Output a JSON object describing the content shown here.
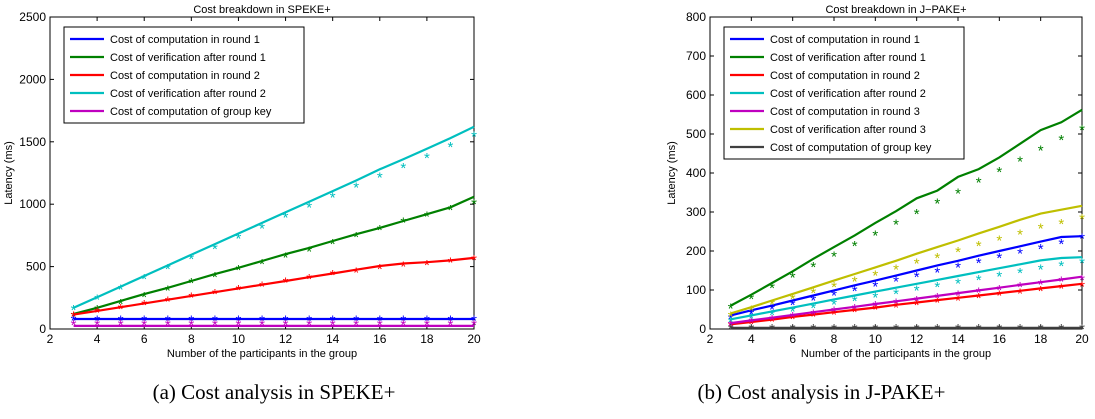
{
  "chart_data": [
    {
      "type": "line",
      "title": "Cost breakdown in SPEKE+",
      "caption": "(a) Cost analysis in SPEKE+",
      "xlabel": "Number of the participants in the group",
      "ylabel": "Latency (ms)",
      "xlim": [
        2,
        20
      ],
      "ylim": [
        0,
        2500
      ],
      "xticks": [
        2,
        4,
        6,
        8,
        10,
        12,
        14,
        16,
        18,
        20
      ],
      "yticks": [
        0,
        500,
        1000,
        1500,
        2000,
        2500
      ],
      "legend_position": "top-left",
      "x": [
        3,
        4,
        5,
        6,
        7,
        8,
        9,
        10,
        11,
        12,
        13,
        14,
        15,
        16,
        17,
        18,
        19,
        20
      ],
      "series": [
        {
          "name": "Cost of computation in round 1",
          "color": "#0000ff",
          "values": [
            80,
            80,
            80,
            80,
            80,
            80,
            80,
            80,
            80,
            80,
            80,
            80,
            80,
            80,
            80,
            80,
            80,
            80
          ],
          "measured": [
            75,
            75,
            75,
            75,
            75,
            75,
            75,
            75,
            75,
            75,
            75,
            75,
            75,
            75,
            75,
            75,
            75,
            75
          ]
        },
        {
          "name": "Cost of verification after round 1",
          "color": "#008000",
          "values": [
            120,
            170,
            225,
            280,
            330,
            385,
            440,
            490,
            545,
            600,
            650,
            705,
            760,
            810,
            865,
            920,
            975,
            1060
          ],
          "measured": [
            110,
            160,
            210,
            265,
            315,
            375,
            425,
            480,
            530,
            580,
            630,
            690,
            745,
            800,
            860,
            910,
            960,
            1010
          ]
        },
        {
          "name": "Cost of computation in round 2",
          "color": "#ff0000",
          "values": [
            115,
            145,
            175,
            205,
            235,
            265,
            295,
            325,
            355,
            385,
            415,
            445,
            475,
            505,
            525,
            535,
            550,
            570
          ],
          "measured": [
            110,
            140,
            170,
            200,
            230,
            260,
            290,
            320,
            350,
            380,
            410,
            440,
            460,
            490,
            510,
            520,
            540,
            560
          ]
        },
        {
          "name": "Cost of verification after round 2",
          "color": "#00bfbf",
          "values": [
            170,
            255,
            340,
            425,
            510,
            595,
            680,
            765,
            850,
            935,
            1020,
            1105,
            1190,
            1280,
            1360,
            1445,
            1530,
            1620
          ],
          "measured": [
            160,
            245,
            325,
            410,
            490,
            570,
            650,
            735,
            815,
            900,
            980,
            1060,
            1140,
            1220,
            1300,
            1380,
            1465,
            1550
          ]
        },
        {
          "name": "Cost of computation of group key",
          "color": "#bf00bf",
          "values": [
            25,
            25,
            25,
            25,
            25,
            25,
            25,
            25,
            25,
            25,
            25,
            25,
            25,
            25,
            25,
            25,
            25,
            25
          ],
          "measured": [
            40,
            40,
            40,
            40,
            40,
            40,
            40,
            40,
            40,
            40,
            40,
            40,
            40,
            40,
            40,
            40,
            40,
            40
          ]
        }
      ]
    },
    {
      "type": "line",
      "title": "Cost breakdown in J−PAKE+",
      "caption": "(b) Cost analysis in J-PAKE+",
      "xlabel": "Number of the participants in the group",
      "ylabel": "Latency (ms)",
      "xlim": [
        2,
        20
      ],
      "ylim": [
        0,
        800
      ],
      "xticks": [
        2,
        4,
        6,
        8,
        10,
        12,
        14,
        16,
        18,
        20
      ],
      "yticks": [
        0,
        100,
        200,
        300,
        400,
        500,
        600,
        700,
        800
      ],
      "legend_position": "top-left",
      "x": [
        3,
        4,
        5,
        6,
        7,
        8,
        9,
        10,
        11,
        12,
        13,
        14,
        15,
        16,
        17,
        18,
        19,
        20
      ],
      "series": [
        {
          "name": "Cost of computation in round 1",
          "color": "#0000ff",
          "values": [
            35,
            48,
            60,
            73,
            86,
            99,
            112,
            124,
            137,
            150,
            163,
            175,
            188,
            200,
            212,
            224,
            236,
            238
          ],
          "measured": [
            28,
            40,
            52,
            64,
            76,
            88,
            100,
            112,
            124,
            136,
            148,
            160,
            172,
            184,
            196,
            208,
            220,
            235
          ]
        },
        {
          "name": "Cost of verification after round 1",
          "color": "#008000",
          "values": [
            60,
            88,
            118,
            148,
            180,
            210,
            240,
            272,
            302,
            335,
            355,
            390,
            410,
            440,
            475,
            510,
            530,
            562
          ],
          "measured": [
            55,
            80,
            108,
            135,
            162,
            188,
            215,
            242,
            270,
            297,
            324,
            350,
            378,
            405,
            432,
            460,
            487,
            513
          ]
        },
        {
          "name": "Cost of computation in round 2",
          "color": "#ff0000",
          "values": [
            12,
            18,
            24,
            31,
            37,
            43,
            49,
            55,
            62,
            68,
            74,
            80,
            86,
            92,
            98,
            104,
            110,
            116
          ],
          "measured": [
            10,
            16,
            22,
            28,
            34,
            40,
            46,
            52,
            58,
            64,
            70,
            76,
            82,
            88,
            94,
            100,
            106,
            112
          ]
        },
        {
          "name": "Cost of verification after round 2",
          "color": "#00bfbf",
          "values": [
            25,
            35,
            45,
            55,
            65,
            76,
            86,
            96,
            106,
            116,
            126,
            136,
            146,
            156,
            166,
            176,
            182,
            184
          ],
          "measured": [
            20,
            29,
            38,
            47,
            56,
            65,
            74,
            83,
            92,
            101,
            110,
            119,
            128,
            137,
            146,
            155,
            164,
            172
          ]
        },
        {
          "name": "Cost of computation in round 3",
          "color": "#bf00bf",
          "values": [
            15,
            22,
            29,
            36,
            43,
            50,
            57,
            64,
            71,
            78,
            85,
            92,
            99,
            106,
            113,
            120,
            127,
            134
          ],
          "measured": [
            12,
            19,
            26,
            33,
            40,
            47,
            54,
            61,
            68,
            75,
            82,
            89,
            96,
            103,
            110,
            117,
            124,
            128
          ]
        },
        {
          "name": "Cost of verification after round 3",
          "color": "#bfbf00",
          "values": [
            40,
            56,
            73,
            90,
            107,
            124,
            141,
            158,
            175,
            193,
            210,
            227,
            245,
            262,
            280,
            296,
            306,
            316
          ],
          "measured": [
            35,
            50,
            65,
            80,
            95,
            110,
            125,
            140,
            155,
            170,
            185,
            200,
            215,
            230,
            245,
            260,
            272,
            285
          ]
        },
        {
          "name": "Cost of computation of group key",
          "color": "#404040",
          "values": [
            3,
            3,
            3,
            3,
            3,
            3,
            3,
            3,
            3,
            3,
            3,
            3,
            3,
            3,
            3,
            3,
            3,
            3
          ],
          "measured": [
            3,
            3,
            3,
            3,
            3,
            3,
            3,
            3,
            3,
            3,
            3,
            3,
            3,
            3,
            3,
            3,
            3,
            3
          ]
        }
      ]
    }
  ]
}
